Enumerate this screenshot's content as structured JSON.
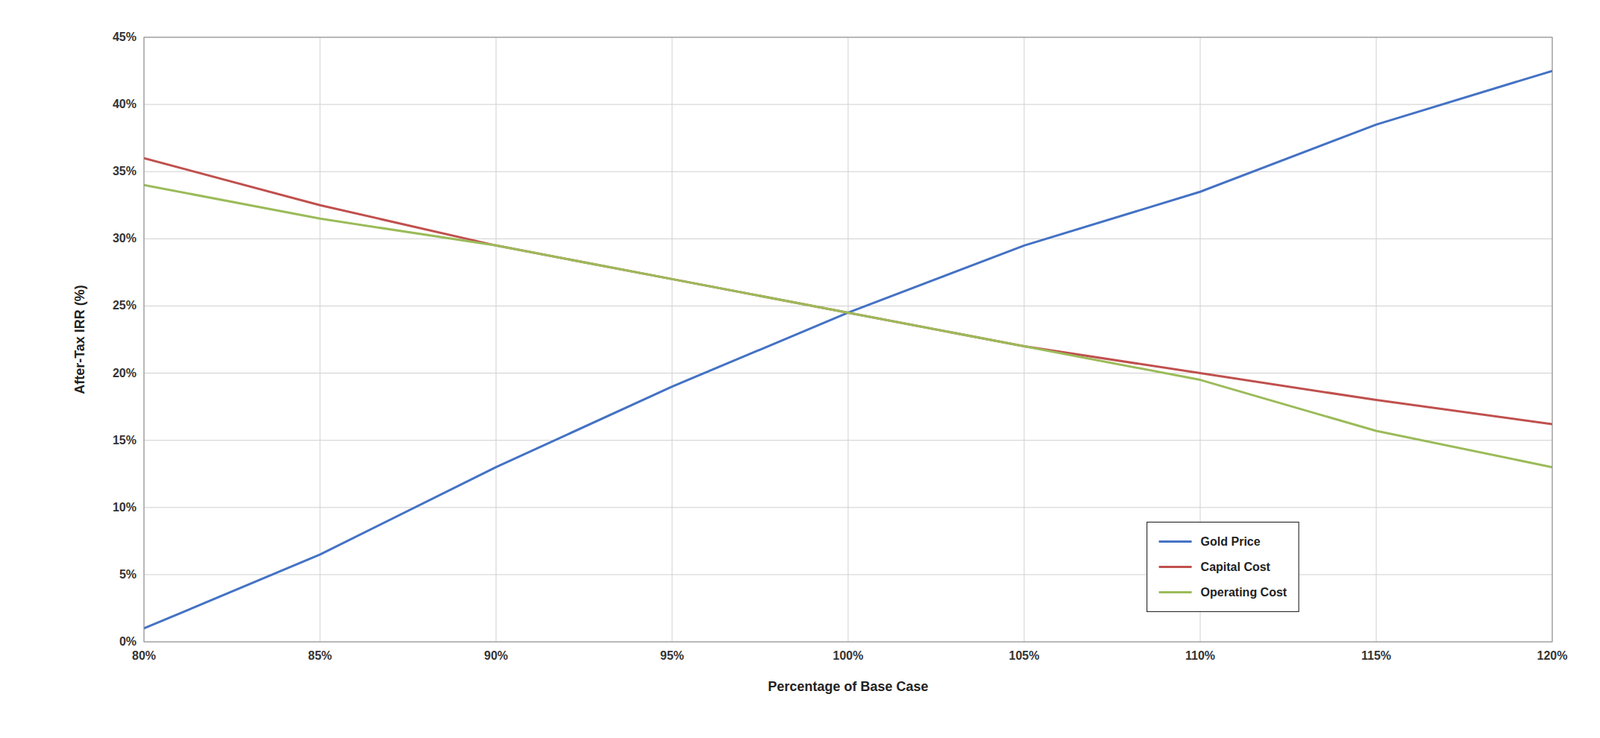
{
  "chart_data": {
    "type": "line",
    "x_label": "Percentage of Base Case",
    "y_label": "After-Tax IRR (%)",
    "x": [
      0.8,
      0.85,
      0.9,
      0.95,
      1.0,
      1.05,
      1.1,
      1.15,
      1.2
    ],
    "series": [
      {
        "name": "Gold Price",
        "color": "#4472C4",
        "values": [
          0.01,
          0.065,
          0.13,
          0.19,
          0.245,
          0.295,
          0.335,
          0.385,
          0.425
        ]
      },
      {
        "name": "Capital Cost",
        "color": "#C0504D",
        "values": [
          0.36,
          0.325,
          0.295,
          0.27,
          0.245,
          0.22,
          0.2,
          0.18,
          0.162
        ]
      },
      {
        "name": "Operating Cost",
        "color": "#9BBB59",
        "values": [
          0.34,
          0.315,
          0.295,
          0.27,
          0.245,
          0.22,
          0.195,
          0.157,
          0.13
        ]
      }
    ],
    "xlim": [
      0.8,
      1.2
    ],
    "ylim": [
      0.0,
      0.45
    ],
    "xticks": [
      {
        "value": 0.8,
        "label": "80%"
      },
      {
        "value": 0.85,
        "label": "85%"
      },
      {
        "value": 0.9,
        "label": "90%"
      },
      {
        "value": 0.95,
        "label": "95%"
      },
      {
        "value": 1.0,
        "label": "100%"
      },
      {
        "value": 1.05,
        "label": "105%"
      },
      {
        "value": 1.1,
        "label": "110%"
      },
      {
        "value": 1.15,
        "label": "115%"
      },
      {
        "value": 1.2,
        "label": "120%"
      }
    ],
    "yticks": [
      {
        "value": 0.0,
        "label": "0%"
      },
      {
        "value": 0.05,
        "label": "5%"
      },
      {
        "value": 0.1,
        "label": "10%"
      },
      {
        "value": 0.15,
        "label": "15%"
      },
      {
        "value": 0.2,
        "label": "20%"
      },
      {
        "value": 0.25,
        "label": "25%"
      },
      {
        "value": 0.3,
        "label": "30%"
      },
      {
        "value": 0.35,
        "label": "35%"
      },
      {
        "value": 0.4,
        "label": "40%"
      },
      {
        "value": 0.45,
        "label": "45%"
      }
    ],
    "grid": true,
    "legend": "lower right"
  }
}
